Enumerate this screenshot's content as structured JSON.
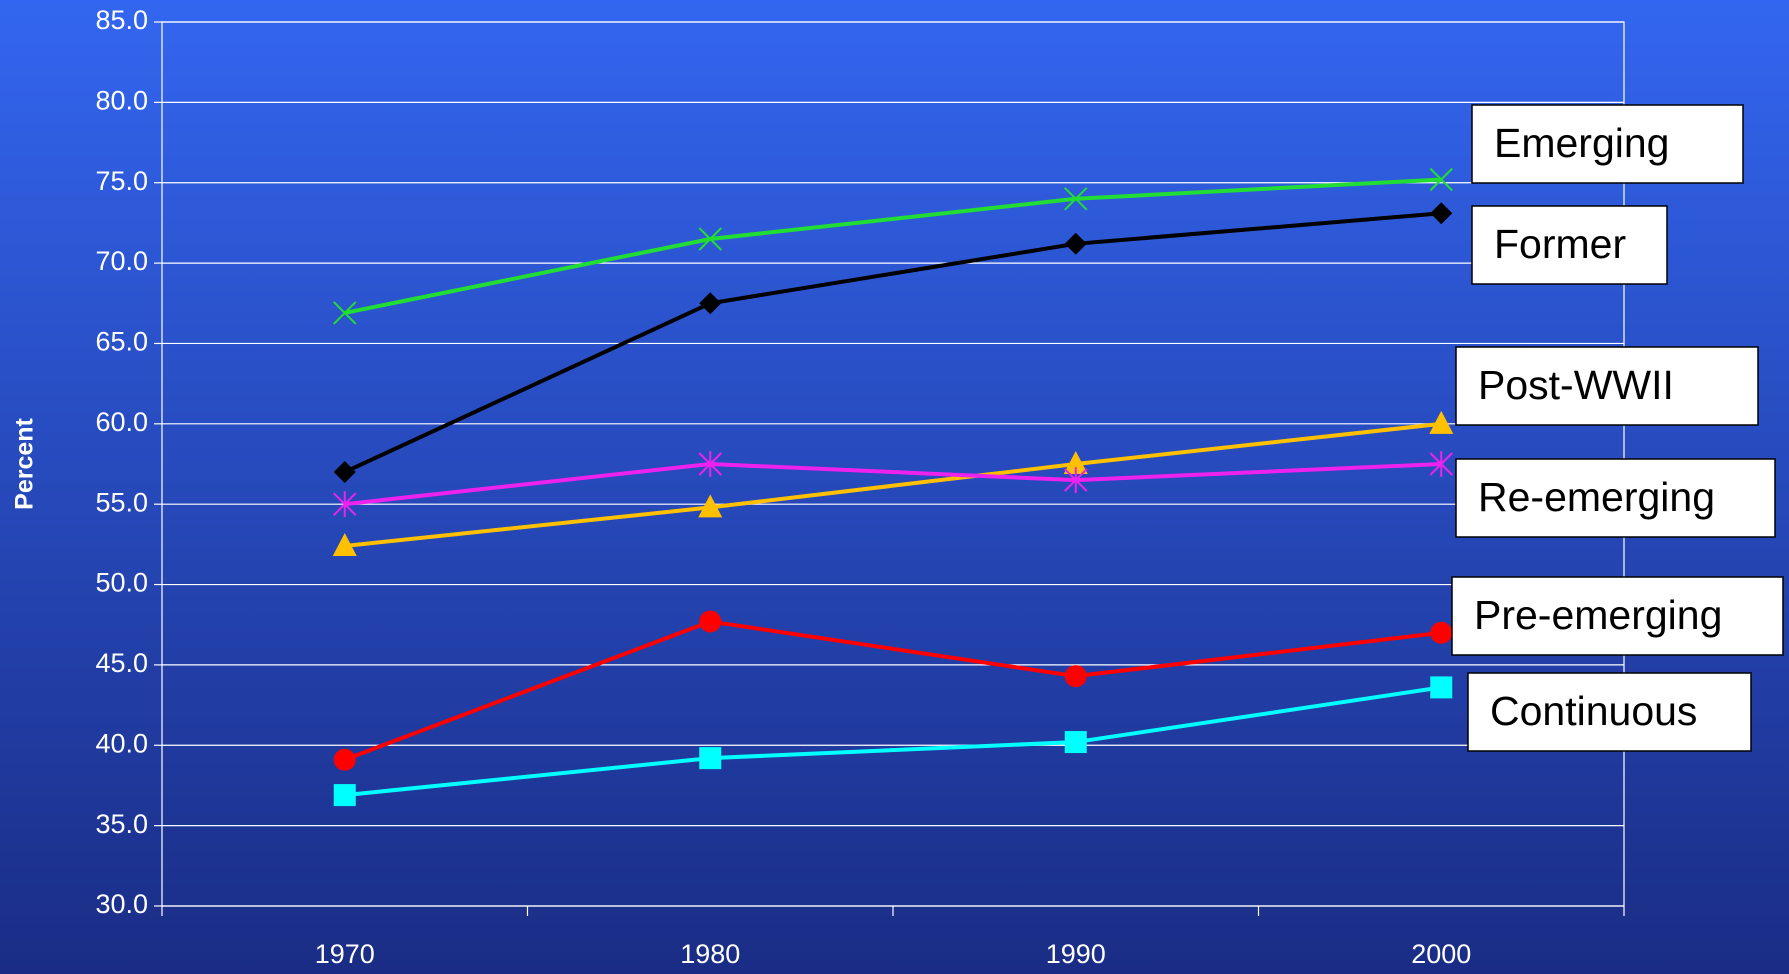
{
  "chart_data": {
    "type": "line",
    "y_label": "Percent",
    "categories": [
      "1970",
      "1980",
      "1990",
      "2000"
    ],
    "ylim": [
      30,
      85
    ],
    "yticks": [
      {
        "value": 30,
        "label": "30.0"
      },
      {
        "value": 35,
        "label": "35.0"
      },
      {
        "value": 40,
        "label": "40.0"
      },
      {
        "value": 45,
        "label": "45.0"
      },
      {
        "value": 50,
        "label": "50.0"
      },
      {
        "value": 55,
        "label": "55.0"
      },
      {
        "value": 60,
        "label": "60.0"
      },
      {
        "value": 65,
        "label": "65.0"
      },
      {
        "value": 70,
        "label": "70.0"
      },
      {
        "value": 75,
        "label": "75.0"
      },
      {
        "value": 80,
        "label": "80.0"
      },
      {
        "value": 85,
        "label": "85.0"
      }
    ],
    "grid": true,
    "series": [
      {
        "name": "Emerging",
        "color": "#22dd33",
        "marker": "x",
        "values": [
          66.9,
          71.5,
          74.0,
          75.2
        ]
      },
      {
        "name": "Former",
        "color": "#000000",
        "marker": "diamond",
        "values": [
          57.0,
          67.5,
          71.2,
          73.1
        ]
      },
      {
        "name": "Post-WWII",
        "color": "#ffc000",
        "marker": "triangle",
        "values": [
          52.4,
          54.8,
          57.5,
          60.0
        ]
      },
      {
        "name": "Re-emerging",
        "color": "#ee22ee",
        "marker": "star",
        "values": [
          55.0,
          57.5,
          56.5,
          57.5
        ]
      },
      {
        "name": "Pre-emerging",
        "color": "#ff0000",
        "marker": "circle",
        "values": [
          39.1,
          47.7,
          44.3,
          47.0
        ]
      },
      {
        "name": "Continuous",
        "color": "#00ffff",
        "marker": "square",
        "values": [
          36.9,
          39.2,
          40.2,
          43.6
        ]
      }
    ]
  }
}
